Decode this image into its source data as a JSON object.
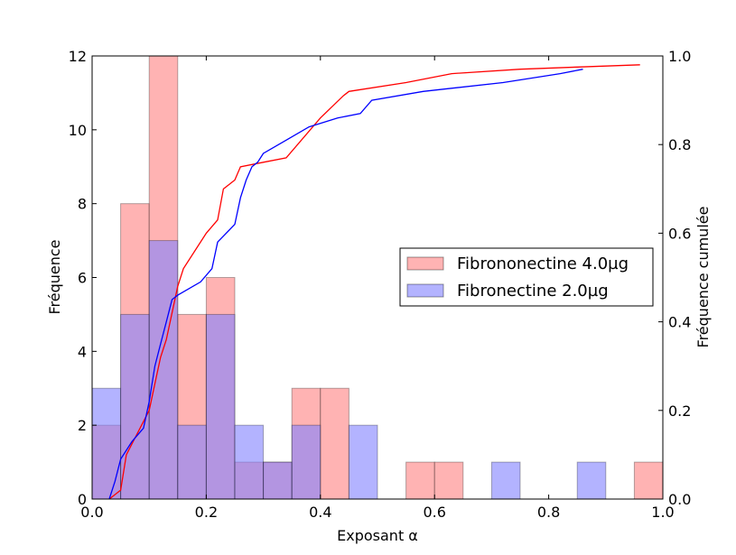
{
  "chart_data": {
    "type": "bar",
    "title": "",
    "xlabel": "Exposant α",
    "ylabel": "Fréquence",
    "y2label": "Fréquence cumulée",
    "xlim": [
      0.0,
      1.0
    ],
    "ylim": [
      0,
      12
    ],
    "y2lim": [
      0.0,
      1.0
    ],
    "xticks": [
      "0.0",
      "0.2",
      "0.4",
      "0.6",
      "0.8",
      "1.0"
    ],
    "yticks": [
      "0",
      "2",
      "4",
      "6",
      "8",
      "10",
      "12"
    ],
    "y2ticks": [
      "0.0",
      "0.2",
      "0.4",
      "0.6",
      "0.8",
      "1.0"
    ],
    "bin_edges": [
      0.0,
      0.05,
      0.1,
      0.15,
      0.2,
      0.25,
      0.3,
      0.35,
      0.4,
      0.45,
      0.5,
      0.55,
      0.6,
      0.65,
      0.7,
      0.75,
      0.8,
      0.85,
      0.9,
      0.95,
      1.0
    ],
    "legend_position": "right",
    "series": [
      {
        "name": "Fibrononectine 4.0µg",
        "color": "#ff8080",
        "counts": [
          2,
          8,
          12,
          5,
          6,
          1,
          1,
          3,
          3,
          0,
          0,
          1,
          1,
          0,
          0,
          0,
          0,
          0,
          0,
          1
        ]
      },
      {
        "name": "Fibronectine 2.0µg",
        "color": "#8080ff",
        "counts": [
          3,
          5,
          7,
          2,
          5,
          2,
          1,
          2,
          0,
          2,
          0,
          0,
          0,
          0,
          1,
          0,
          0,
          1,
          0,
          0
        ]
      }
    ],
    "cumulative": [
      {
        "color": "#ff0000",
        "x": [
          0.03,
          0.05,
          0.06,
          0.1,
          0.11,
          0.12,
          0.13,
          0.14,
          0.15,
          0.16,
          0.2,
          0.22,
          0.23,
          0.25,
          0.26,
          0.3,
          0.34,
          0.4,
          0.44,
          0.45,
          0.55,
          0.63,
          0.75,
          0.85,
          0.96
        ],
        "y": [
          0.0,
          0.02,
          0.1,
          0.2,
          0.26,
          0.32,
          0.36,
          0.42,
          0.48,
          0.52,
          0.6,
          0.63,
          0.7,
          0.72,
          0.75,
          0.76,
          0.77,
          0.86,
          0.91,
          0.92,
          0.94,
          0.96,
          0.97,
          0.975,
          0.98
        ]
      },
      {
        "color": "#0000ff",
        "x": [
          0.03,
          0.04,
          0.05,
          0.06,
          0.07,
          0.09,
          0.1,
          0.11,
          0.12,
          0.13,
          0.14,
          0.15,
          0.19,
          0.21,
          0.22,
          0.25,
          0.26,
          0.27,
          0.28,
          0.29,
          0.3,
          0.34,
          0.38,
          0.43,
          0.47,
          0.49,
          0.58,
          0.72,
          0.82,
          0.86
        ],
        "y": [
          0.0,
          0.04,
          0.09,
          0.11,
          0.13,
          0.16,
          0.22,
          0.3,
          0.35,
          0.4,
          0.45,
          0.46,
          0.49,
          0.52,
          0.58,
          0.62,
          0.68,
          0.72,
          0.75,
          0.76,
          0.78,
          0.81,
          0.84,
          0.86,
          0.87,
          0.9,
          0.92,
          0.94,
          0.96,
          0.97
        ]
      }
    ]
  }
}
